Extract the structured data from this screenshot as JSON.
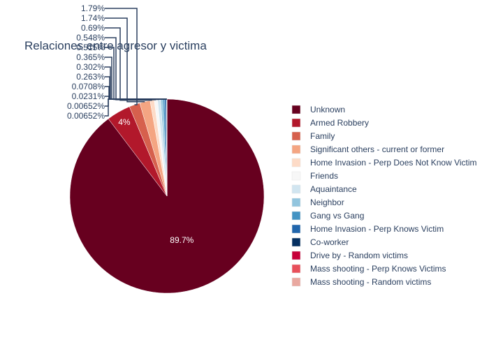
{
  "chart_data": {
    "type": "pie",
    "title": "Relaciones entre agresor y victima",
    "legend_position": "right",
    "slices": [
      {
        "label": "Unknown",
        "value": 89.7,
        "display": "89.7%",
        "color": "#67001f"
      },
      {
        "label": "Armed Robbery",
        "value": 4.0,
        "display": "4%",
        "color": "#b2182b"
      },
      {
        "label": "Family",
        "value": 1.79,
        "display": "1.79%",
        "color": "#d6604d"
      },
      {
        "label": "Significant others - current or former",
        "value": 1.74,
        "display": "1.74%",
        "color": "#f4a582"
      },
      {
        "label": "Home Invasion - Perp Does Not Know Victim",
        "value": 0.69,
        "display": "0.69%",
        "color": "#fddbc7"
      },
      {
        "label": "Friends",
        "value": 0.548,
        "display": "0.548%",
        "color": "#f7f7f7"
      },
      {
        "label": "Aquaintance",
        "value": 0.515,
        "display": "0.515%",
        "color": "#d1e5f0"
      },
      {
        "label": "Neighbor",
        "value": 0.365,
        "display": "0.365%",
        "color": "#92c5de"
      },
      {
        "label": "Gang vs Gang",
        "value": 0.302,
        "display": "0.302%",
        "color": "#4393c3"
      },
      {
        "label": "Home Invasion - Perp Knows Victim",
        "value": 0.263,
        "display": "0.263%",
        "color": "#2166ac"
      },
      {
        "label": "Co-worker",
        "value": 0.0708,
        "display": "0.0708%",
        "color": "#053061"
      },
      {
        "label": "Drive by - Random victims",
        "value": 0.0231,
        "display": "0.0231%",
        "color": "#c70039"
      },
      {
        "label": "Mass shooting - Perp Knows Victims",
        "value": 0.00652,
        "display": "0.00652%",
        "color": "#e8505b"
      },
      {
        "label": "Mass shooting - Random victims",
        "value": 0.00652,
        "display": "0.00652%",
        "color": "#e9a8a0"
      }
    ]
  }
}
